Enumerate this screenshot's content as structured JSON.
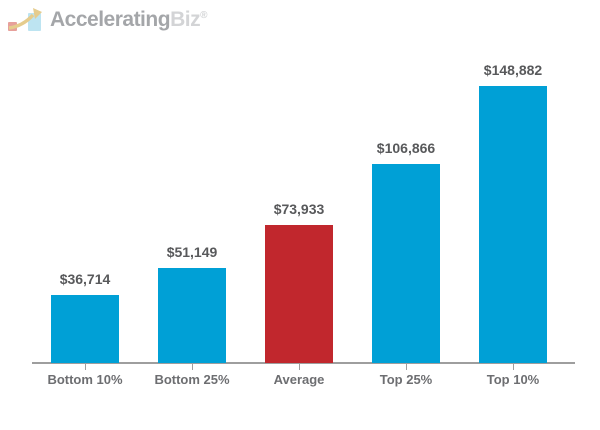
{
  "logo": {
    "brand_primary": "Accelerating",
    "brand_secondary": "Biz",
    "registered_mark": "®",
    "icon": "growth-arrow-chart-icon",
    "icon_colors": {
      "bar_red": "#e7a09b",
      "bar_blue": "#bde4f1",
      "arrow": "#e5cc8d"
    },
    "text_colors": {
      "primary": "#a4a6a9",
      "secondary": "#d3d4d6"
    }
  },
  "chart_data": {
    "type": "bar",
    "title": "",
    "categories": [
      "Bottom 10%",
      "Bottom 25%",
      "Average",
      "Top 25%",
      "Top 10%"
    ],
    "values": [
      36714,
      51149,
      73933,
      106866,
      148882
    ],
    "value_labels": [
      "$36,714",
      "$51,149",
      "$73,933",
      "$106,866",
      "$148,882"
    ],
    "bar_colors": [
      "#00A0D6",
      "#00A0D6",
      "#C1272D",
      "#00A0D6",
      "#00A0D6"
    ],
    "xlabel": "",
    "ylabel": "",
    "ylim": [
      0,
      150000
    ],
    "grid": false,
    "legend": "none",
    "colors": {
      "bar_primary": "#00A0D6",
      "bar_highlight": "#C1272D",
      "value_label_text": "#58595B",
      "axis_label_text": "#6D6E71",
      "axis_line": "#9E9E9E"
    }
  }
}
